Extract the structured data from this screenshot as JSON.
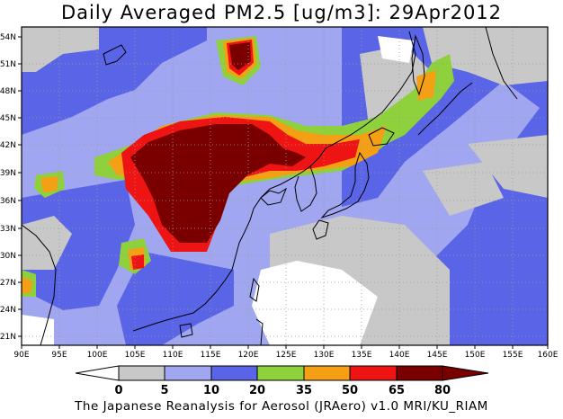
{
  "title": "Daily Averaged PM2.5 [ug/m3]: 29Apr2012",
  "footer": "The Japanese Reanalysis for Aerosol (JRAero) v1.0 MRI/KU_RIAM",
  "lon_ticks": [
    "90E",
    "95E",
    "100E",
    "105E",
    "110E",
    "115E",
    "120E",
    "125E",
    "130E",
    "135E",
    "140E",
    "145E",
    "150E",
    "155E",
    "160E"
  ],
  "lat_ticks": [
    "54N",
    "51N",
    "48N",
    "45N",
    "42N",
    "39N",
    "36N",
    "33N",
    "30N",
    "27N",
    "24N",
    "21N"
  ],
  "colorbar": {
    "labels": [
      "0",
      "5",
      "10",
      "20",
      "35",
      "50",
      "65",
      "80"
    ],
    "colors": [
      "#ffffff",
      "#c8c8c8",
      "#a0a6f0",
      "#5a64e6",
      "#8fd13c",
      "#f5a014",
      "#ee1414",
      "#7a0000"
    ]
  },
  "colors": {
    "land_outline": "#000000",
    "grid": "#9a9a9a"
  }
}
